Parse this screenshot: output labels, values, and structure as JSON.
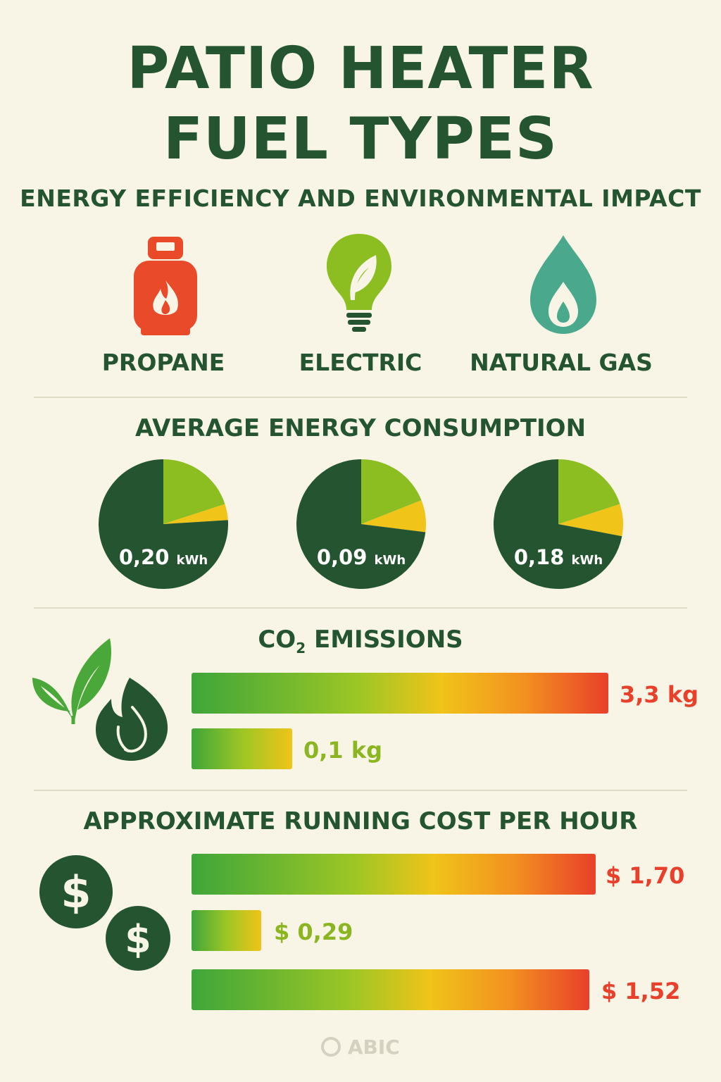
{
  "header": {
    "title_line1": "PATIO HEATER",
    "title_line2": "FUEL TYPES",
    "subtitle": "ENERGY EFFICIENCY AND ENVIRONMENTAL IMPACT"
  },
  "fuels": [
    {
      "label": "PROPANE",
      "icon": "gas-cylinder-icon",
      "color": "#e94a2a"
    },
    {
      "label": "ELECTRIC",
      "icon": "leaf-bulb-icon",
      "color": "#8cbd21"
    },
    {
      "label": "NATURAL GAS",
      "icon": "flame-drop-icon",
      "color": "#4aa88c"
    }
  ],
  "sections": {
    "energy": "AVERAGE ENERGY CONSUMPTION",
    "co2_prefix": "CO",
    "co2_sub": "2",
    "co2_suffix": " EMISSIONS",
    "cost": "APPROXIMATE RUNNING COST PER HOUR"
  },
  "chart_data": [
    {
      "type": "pie",
      "title": "AVERAGE ENERGY CONSUMPTION",
      "pies": [
        {
          "value_text": "0,20",
          "unit": "kWh",
          "slices": [
            {
              "color": "#245530",
              "fraction": 0.76
            },
            {
              "color": "#8cbd21",
              "fraction": 0.2
            },
            {
              "color": "#f0c419",
              "fraction": 0.04
            }
          ]
        },
        {
          "value_text": "0,09",
          "unit": "kWh",
          "slices": [
            {
              "color": "#245530",
              "fraction": 0.73
            },
            {
              "color": "#8cbd21",
              "fraction": 0.19
            },
            {
              "color": "#f0c419",
              "fraction": 0.08
            }
          ]
        },
        {
          "value_text": "0,18",
          "unit": "kWh",
          "slices": [
            {
              "color": "#245530",
              "fraction": 0.72
            },
            {
              "color": "#8cbd21",
              "fraction": 0.2
            },
            {
              "color": "#f0c419",
              "fraction": 0.08
            }
          ]
        }
      ],
      "colors": {
        "dark": "#245530",
        "light": "#8cbd21",
        "yellow": "#f0c419"
      }
    },
    {
      "type": "bar",
      "title": "CO2 EMISSIONS",
      "unit": "kg",
      "values": [
        3.3,
        0.1
      ],
      "labels": [
        "3,3 kg",
        "0,1 kg"
      ],
      "label_colors": [
        "#e8402a",
        "#8cb621"
      ],
      "bar_extent": [
        1.0,
        0.24
      ]
    },
    {
      "type": "bar",
      "title": "APPROXIMATE RUNNING COST PER HOUR",
      "unit": "$",
      "values": [
        1.7,
        0.29,
        1.52
      ],
      "labels": [
        "$ 1,70",
        "$ 0,29",
        "$ 1,52"
      ],
      "label_colors": [
        "#e8402a",
        "#8cb621",
        "#e8402a"
      ]
    }
  ],
  "footer": {
    "logo": "ABIC"
  }
}
